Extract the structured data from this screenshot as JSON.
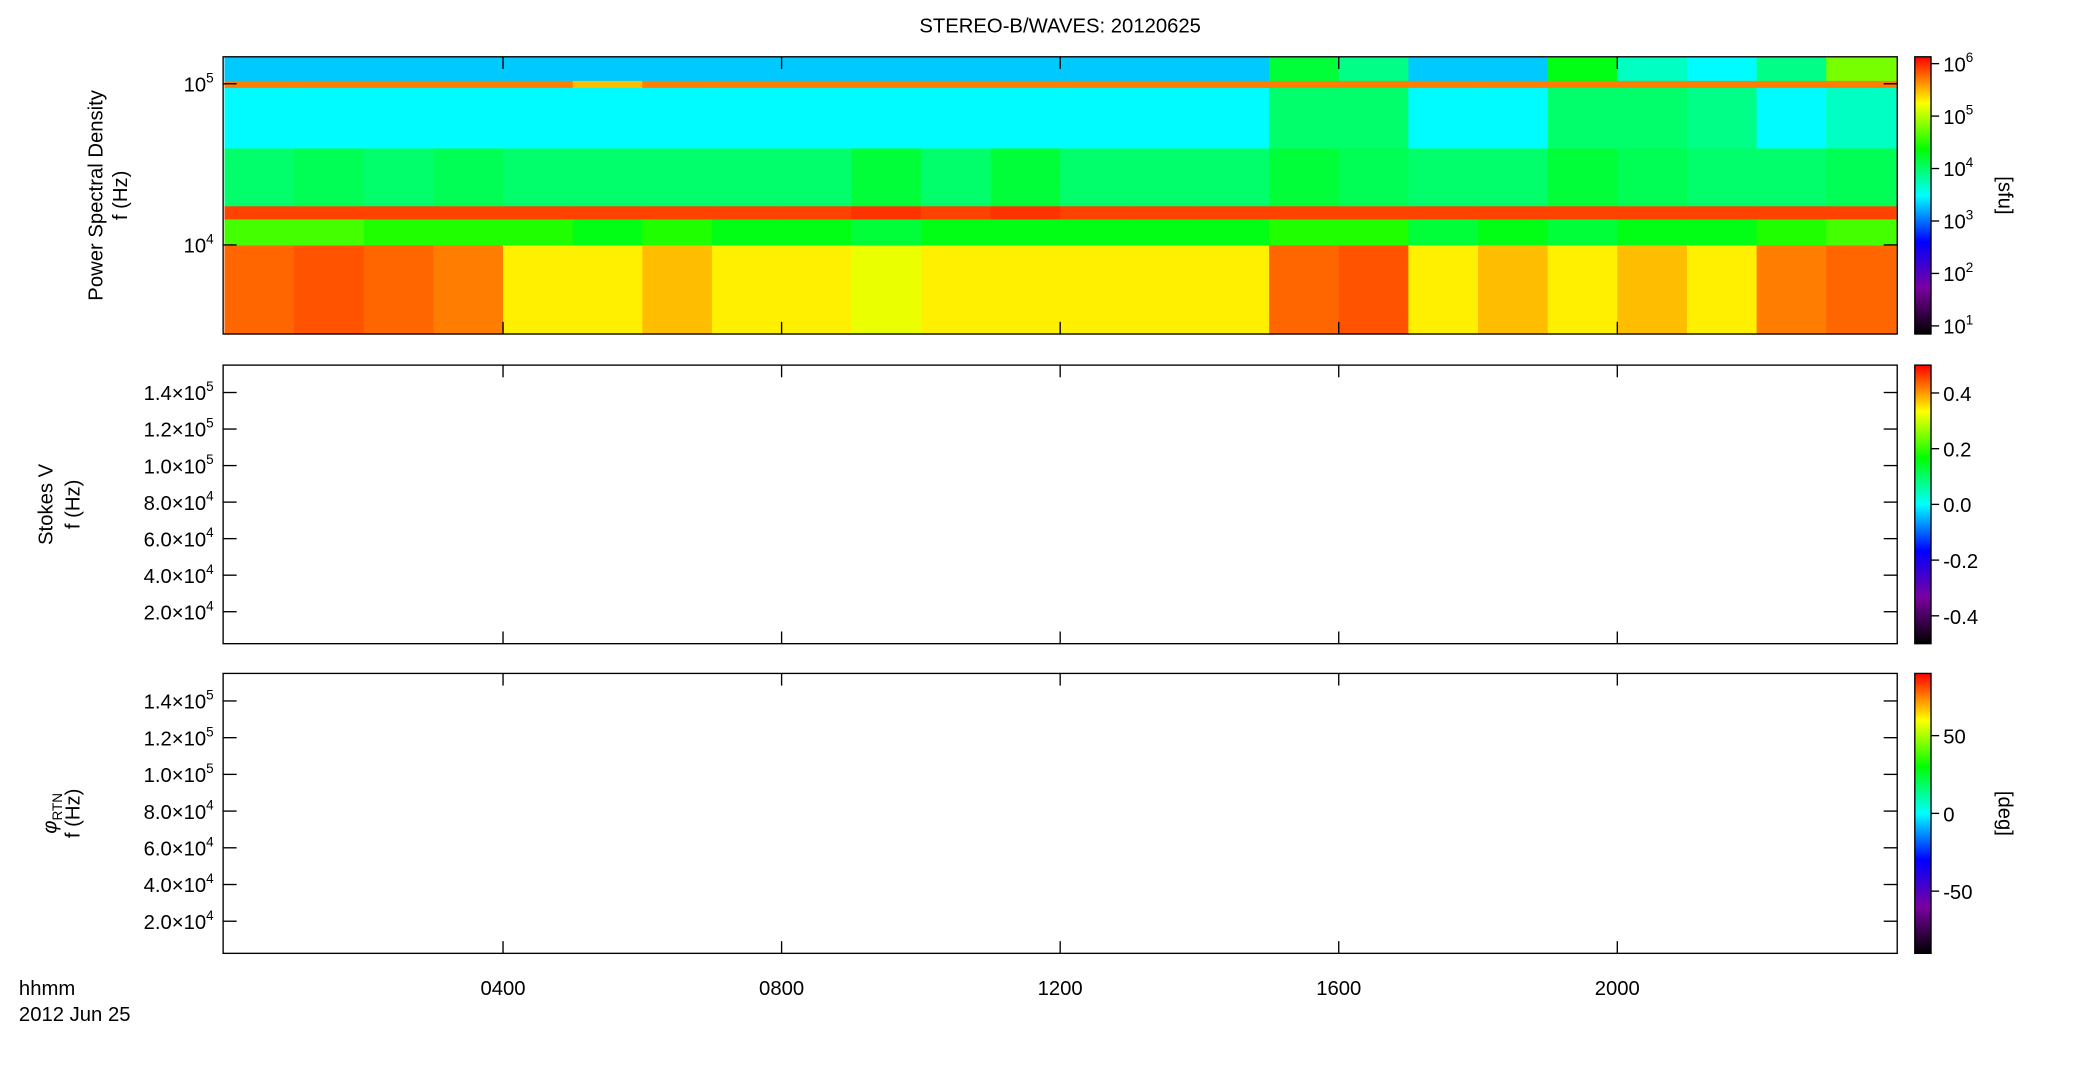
{
  "chart_data": [
    {
      "type": "heatmap",
      "title": "STEREO-B/WAVES: 20120625",
      "ylabel": "Power Spectral Density",
      "ylabel2": "f (Hz)",
      "log_y": true,
      "xlim": [
        0,
        24
      ],
      "ylim": [
        2800,
        147000
      ],
      "yticks": [
        {
          "value": 10000,
          "label": "10",
          "sup": "4"
        },
        {
          "value": 100000,
          "label": "10",
          "sup": "5"
        }
      ],
      "x_bins": [
        0,
        1,
        2,
        3,
        4,
        5,
        6,
        7,
        8,
        9,
        10,
        11,
        12,
        13,
        14,
        15,
        16,
        17,
        18,
        19,
        20,
        21,
        22,
        23,
        24
      ],
      "y_bins": [
        2800,
        10000,
        14500,
        17500,
        40000,
        95000,
        105000,
        147000
      ],
      "z": [
        [
          600000,
          700000,
          600000,
          500000,
          200000,
          200000,
          300000,
          200000,
          200000,
          150000,
          200000,
          200000,
          200000,
          200000,
          200000,
          600000,
          700000,
          200000,
          300000,
          200000,
          300000,
          200000,
          500000,
          600000
        ],
        [
          40000,
          40000,
          30000,
          30000,
          30000,
          20000,
          30000,
          20000,
          20000,
          15000,
          20000,
          20000,
          20000,
          20000,
          20000,
          30000,
          30000,
          15000,
          20000,
          15000,
          20000,
          20000,
          30000,
          40000
        ],
        [
          800000,
          800000,
          800000,
          800000,
          800000,
          800000,
          800000,
          800000,
          800000,
          900000,
          800000,
          900000,
          800000,
          800000,
          800000,
          800000,
          800000,
          800000,
          800000,
          800000,
          800000,
          800000,
          800000,
          800000
        ],
        [
          10000,
          12000,
          10000,
          12000,
          10000,
          10000,
          10000,
          10000,
          10000,
          15000,
          10000,
          15000,
          10000,
          10000,
          10000,
          15000,
          12000,
          10000,
          10000,
          15000,
          12000,
          10000,
          10000,
          12000
        ],
        [
          3000,
          3000,
          3000,
          3000,
          3000,
          3000,
          3000,
          3000,
          3000,
          3000,
          3000,
          3000,
          3000,
          3000,
          3000,
          10000,
          10000,
          3000,
          3000,
          10000,
          10000,
          8000,
          3000,
          5000
        ],
        [
          500000,
          500000,
          500000,
          500000,
          500000,
          300000,
          500000,
          500000,
          500000,
          500000,
          500000,
          500000,
          500000,
          500000,
          500000,
          500000,
          500000,
          500000,
          500000,
          500000,
          500000,
          500000,
          500000,
          500000
        ],
        [
          2000,
          2000,
          2000,
          2000,
          2000,
          2000,
          2000,
          2000,
          2000,
          2000,
          2000,
          2000,
          2000,
          2000,
          2000,
          15000,
          8000,
          2000,
          2000,
          20000,
          5000,
          3000,
          8000,
          60000
        ]
      ],
      "colorbar": {
        "label": "[sfu]",
        "log": true,
        "lim": [
          7,
          1350000
        ],
        "ticks": [
          {
            "value": 10,
            "label": "10",
            "sup": "1"
          },
          {
            "value": 100,
            "label": "10",
            "sup": "2"
          },
          {
            "value": 1000,
            "label": "10",
            "sup": "3"
          },
          {
            "value": 10000,
            "label": "10",
            "sup": "4"
          },
          {
            "value": 100000,
            "label": "10",
            "sup": "5"
          },
          {
            "value": 1000000,
            "label": "10",
            "sup": "6"
          }
        ],
        "colormap": [
          "#000000",
          "#7a00a0",
          "#0000ff",
          "#00ffff",
          "#00ff00",
          "#ffff00",
          "#ff0000"
        ]
      }
    },
    {
      "type": "heatmap",
      "ylabel": "Stokes V",
      "ylabel2": "f (Hz)",
      "xlim": [
        0,
        24
      ],
      "ylim": [
        2500,
        155000
      ],
      "yticks": [
        {
          "value": 20000,
          "label": "2.0×10",
          "sup": "4"
        },
        {
          "value": 40000,
          "label": "4.0×10",
          "sup": "4"
        },
        {
          "value": 60000,
          "label": "6.0×10",
          "sup": "4"
        },
        {
          "value": 80000,
          "label": "8.0×10",
          "sup": "4"
        },
        {
          "value": 100000,
          "label": "1.0×10",
          "sup": "5"
        },
        {
          "value": 120000,
          "label": "1.2×10",
          "sup": "5"
        },
        {
          "value": 140000,
          "label": "1.4×10",
          "sup": "5"
        }
      ],
      "colorbar": {
        "lim": [
          -0.5,
          0.5
        ],
        "ticks": [
          -0.4,
          -0.2,
          {
            "value": 0,
            "label": "0.0"
          },
          0.2,
          0.4
        ],
        "colormap": [
          "#000000",
          "#7a00a0",
          "#0000ff",
          "#00ffff",
          "#00ff00",
          "#ffff00",
          "#ff0000"
        ]
      }
    },
    {
      "type": "heatmap",
      "ylabel": {
        "symbol": "φ",
        "sub": "RTN"
      },
      "ylabel2": "f (Hz)",
      "xlim": [
        0,
        24
      ],
      "ylim": [
        2500,
        155000
      ],
      "yticks": [
        {
          "value": 20000,
          "label": "2.0×10",
          "sup": "4"
        },
        {
          "value": 40000,
          "label": "4.0×10",
          "sup": "4"
        },
        {
          "value": 60000,
          "label": "6.0×10",
          "sup": "4"
        },
        {
          "value": 80000,
          "label": "8.0×10",
          "sup": "4"
        },
        {
          "value": 100000,
          "label": "1.0×10",
          "sup": "5"
        },
        {
          "value": 120000,
          "label": "1.2×10",
          "sup": "5"
        },
        {
          "value": 140000,
          "label": "1.4×10",
          "sup": "5"
        }
      ],
      "xticks": [
        {
          "value": 4,
          "label": "0400"
        },
        {
          "value": 8,
          "label": "0800"
        },
        {
          "value": 12,
          "label": "1200"
        },
        {
          "value": 16,
          "label": "1600"
        },
        {
          "value": 20,
          "label": "2000"
        }
      ],
      "xlabel": "hhmm",
      "date": "2012 Jun 25",
      "colorbar": {
        "label": "[deg]",
        "lim": [
          -90,
          90
        ],
        "ticks": [
          -50,
          0,
          50
        ],
        "colormap": [
          "#000000",
          "#7a00a0",
          "#0000ff",
          "#00ffff",
          "#00ff00",
          "#ffff00",
          "#ff0000"
        ]
      }
    }
  ]
}
